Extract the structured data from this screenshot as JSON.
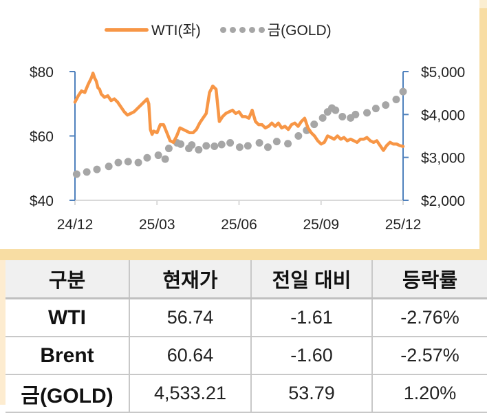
{
  "legend": {
    "wti_label": "WTI(좌)",
    "gold_label": "금(GOLD)"
  },
  "colors": {
    "wti": "#f79646",
    "gold": "#a6a6a6",
    "axis": "#4f81bd",
    "panel_accent": "#f8dda3",
    "header_bg": "#f0f0f0"
  },
  "chart_data": {
    "type": "line",
    "title": "",
    "xlabel": "",
    "x_ticks": [
      "24/12",
      "25/03",
      "25/06",
      "25/09",
      "25/12"
    ],
    "y_left": {
      "label": "WTI",
      "ticks": [
        "$80",
        "$60",
        "$40"
      ],
      "range": [
        40,
        80
      ]
    },
    "y_right": {
      "label": "GOLD",
      "ticks": [
        "$5,000",
        "$4,000",
        "$3,000",
        "$2,000"
      ],
      "range": [
        2000,
        5000
      ]
    },
    "grid": false,
    "legend_position": "top",
    "series": [
      {
        "name": "WTI(좌)",
        "axis": "left",
        "style": "line",
        "x": [
          0.0,
          0.01,
          0.02,
          0.03,
          0.04,
          0.05,
          0.055,
          0.06,
          0.065,
          0.07,
          0.075,
          0.08,
          0.09,
          0.1,
          0.11,
          0.12,
          0.13,
          0.14,
          0.15,
          0.16,
          0.17,
          0.18,
          0.19,
          0.2,
          0.21,
          0.22,
          0.225,
          0.23,
          0.235,
          0.24,
          0.25,
          0.26,
          0.27,
          0.28,
          0.29,
          0.3,
          0.31,
          0.32,
          0.33,
          0.34,
          0.35,
          0.36,
          0.37,
          0.38,
          0.39,
          0.4,
          0.41,
          0.42,
          0.43,
          0.44,
          0.45,
          0.46,
          0.47,
          0.48,
          0.49,
          0.5,
          0.51,
          0.52,
          0.53,
          0.54,
          0.55,
          0.56,
          0.57,
          0.58,
          0.59,
          0.6,
          0.61,
          0.62,
          0.63,
          0.64,
          0.65,
          0.66,
          0.67,
          0.68,
          0.69,
          0.7,
          0.71,
          0.72,
          0.73,
          0.74,
          0.75,
          0.76,
          0.77,
          0.78,
          0.79,
          0.8,
          0.81,
          0.82,
          0.83,
          0.84,
          0.85,
          0.86,
          0.87,
          0.88,
          0.89,
          0.9,
          0.91,
          0.92,
          0.93,
          0.94,
          0.95,
          0.96,
          0.97,
          0.98,
          0.99,
          1.0
        ],
        "values": [
          70.5,
          72.5,
          74,
          73.5,
          76,
          78,
          79.5,
          78,
          77,
          75,
          74.5,
          73,
          72,
          72.5,
          71,
          71.5,
          70.5,
          69,
          67.5,
          66.5,
          67,
          67.5,
          68.5,
          69.5,
          70.5,
          71.5,
          70,
          62,
          60.5,
          61.5,
          61,
          63.5,
          63.5,
          61,
          58.5,
          58,
          60,
          62.5,
          62,
          61.5,
          61,
          61,
          62,
          64,
          65.5,
          67,
          73.5,
          75.5,
          74.5,
          64.5,
          66,
          67,
          67.5,
          68,
          67,
          67.5,
          66,
          66,
          65.5,
          68,
          64.5,
          63.5,
          63.5,
          62.5,
          63,
          64,
          63,
          64,
          62.5,
          63,
          62,
          63.5,
          64,
          63,
          64.5,
          65.5,
          62.5,
          61,
          60,
          58.5,
          57.5,
          58,
          60,
          59.5,
          59,
          60,
          59,
          59.5,
          58.5,
          59,
          58.5,
          58,
          59,
          59,
          59.5,
          58.5,
          58,
          58.5,
          57,
          55.5,
          57,
          58,
          57.5,
          57.5,
          57,
          56.74
        ]
      },
      {
        "name": "금(GOLD)",
        "axis": "right",
        "style": "dots",
        "x": [
          0.005,
          0.036,
          0.067,
          0.103,
          0.132,
          0.162,
          0.193,
          0.22,
          0.254,
          0.275,
          0.286,
          0.311,
          0.322,
          0.347,
          0.356,
          0.377,
          0.4,
          0.425,
          0.447,
          0.473,
          0.502,
          0.527,
          0.562,
          0.588,
          0.615,
          0.649,
          0.681,
          0.706,
          0.729,
          0.755,
          0.77,
          0.783,
          0.794,
          0.815,
          0.84,
          0.855,
          0.89,
          0.917,
          0.947,
          0.979,
          1.0
        ],
        "values": [
          2610,
          2660,
          2720,
          2790,
          2880,
          2900,
          2880,
          2990,
          3050,
          2960,
          3210,
          3340,
          3310,
          3210,
          3290,
          3180,
          3270,
          3260,
          3300,
          3340,
          3240,
          3270,
          3340,
          3240,
          3370,
          3320,
          3500,
          3630,
          3770,
          3920,
          4060,
          4150,
          4100,
          3950,
          3920,
          4000,
          4040,
          4140,
          4220,
          4350,
          4533.21
        ]
      }
    ]
  },
  "table": {
    "headers": [
      "구분",
      "현재가",
      "전일 대비",
      "등락률"
    ],
    "rows": [
      {
        "name": "WTI",
        "price": "56.74",
        "change": "-1.61",
        "rate": "-2.76%"
      },
      {
        "name": "Brent",
        "price": "60.64",
        "change": "-1.60",
        "rate": "-2.57%"
      },
      {
        "name": "금(GOLD)",
        "price": "4,533.21",
        "change": "53.79",
        "rate": "1.20%"
      }
    ]
  }
}
